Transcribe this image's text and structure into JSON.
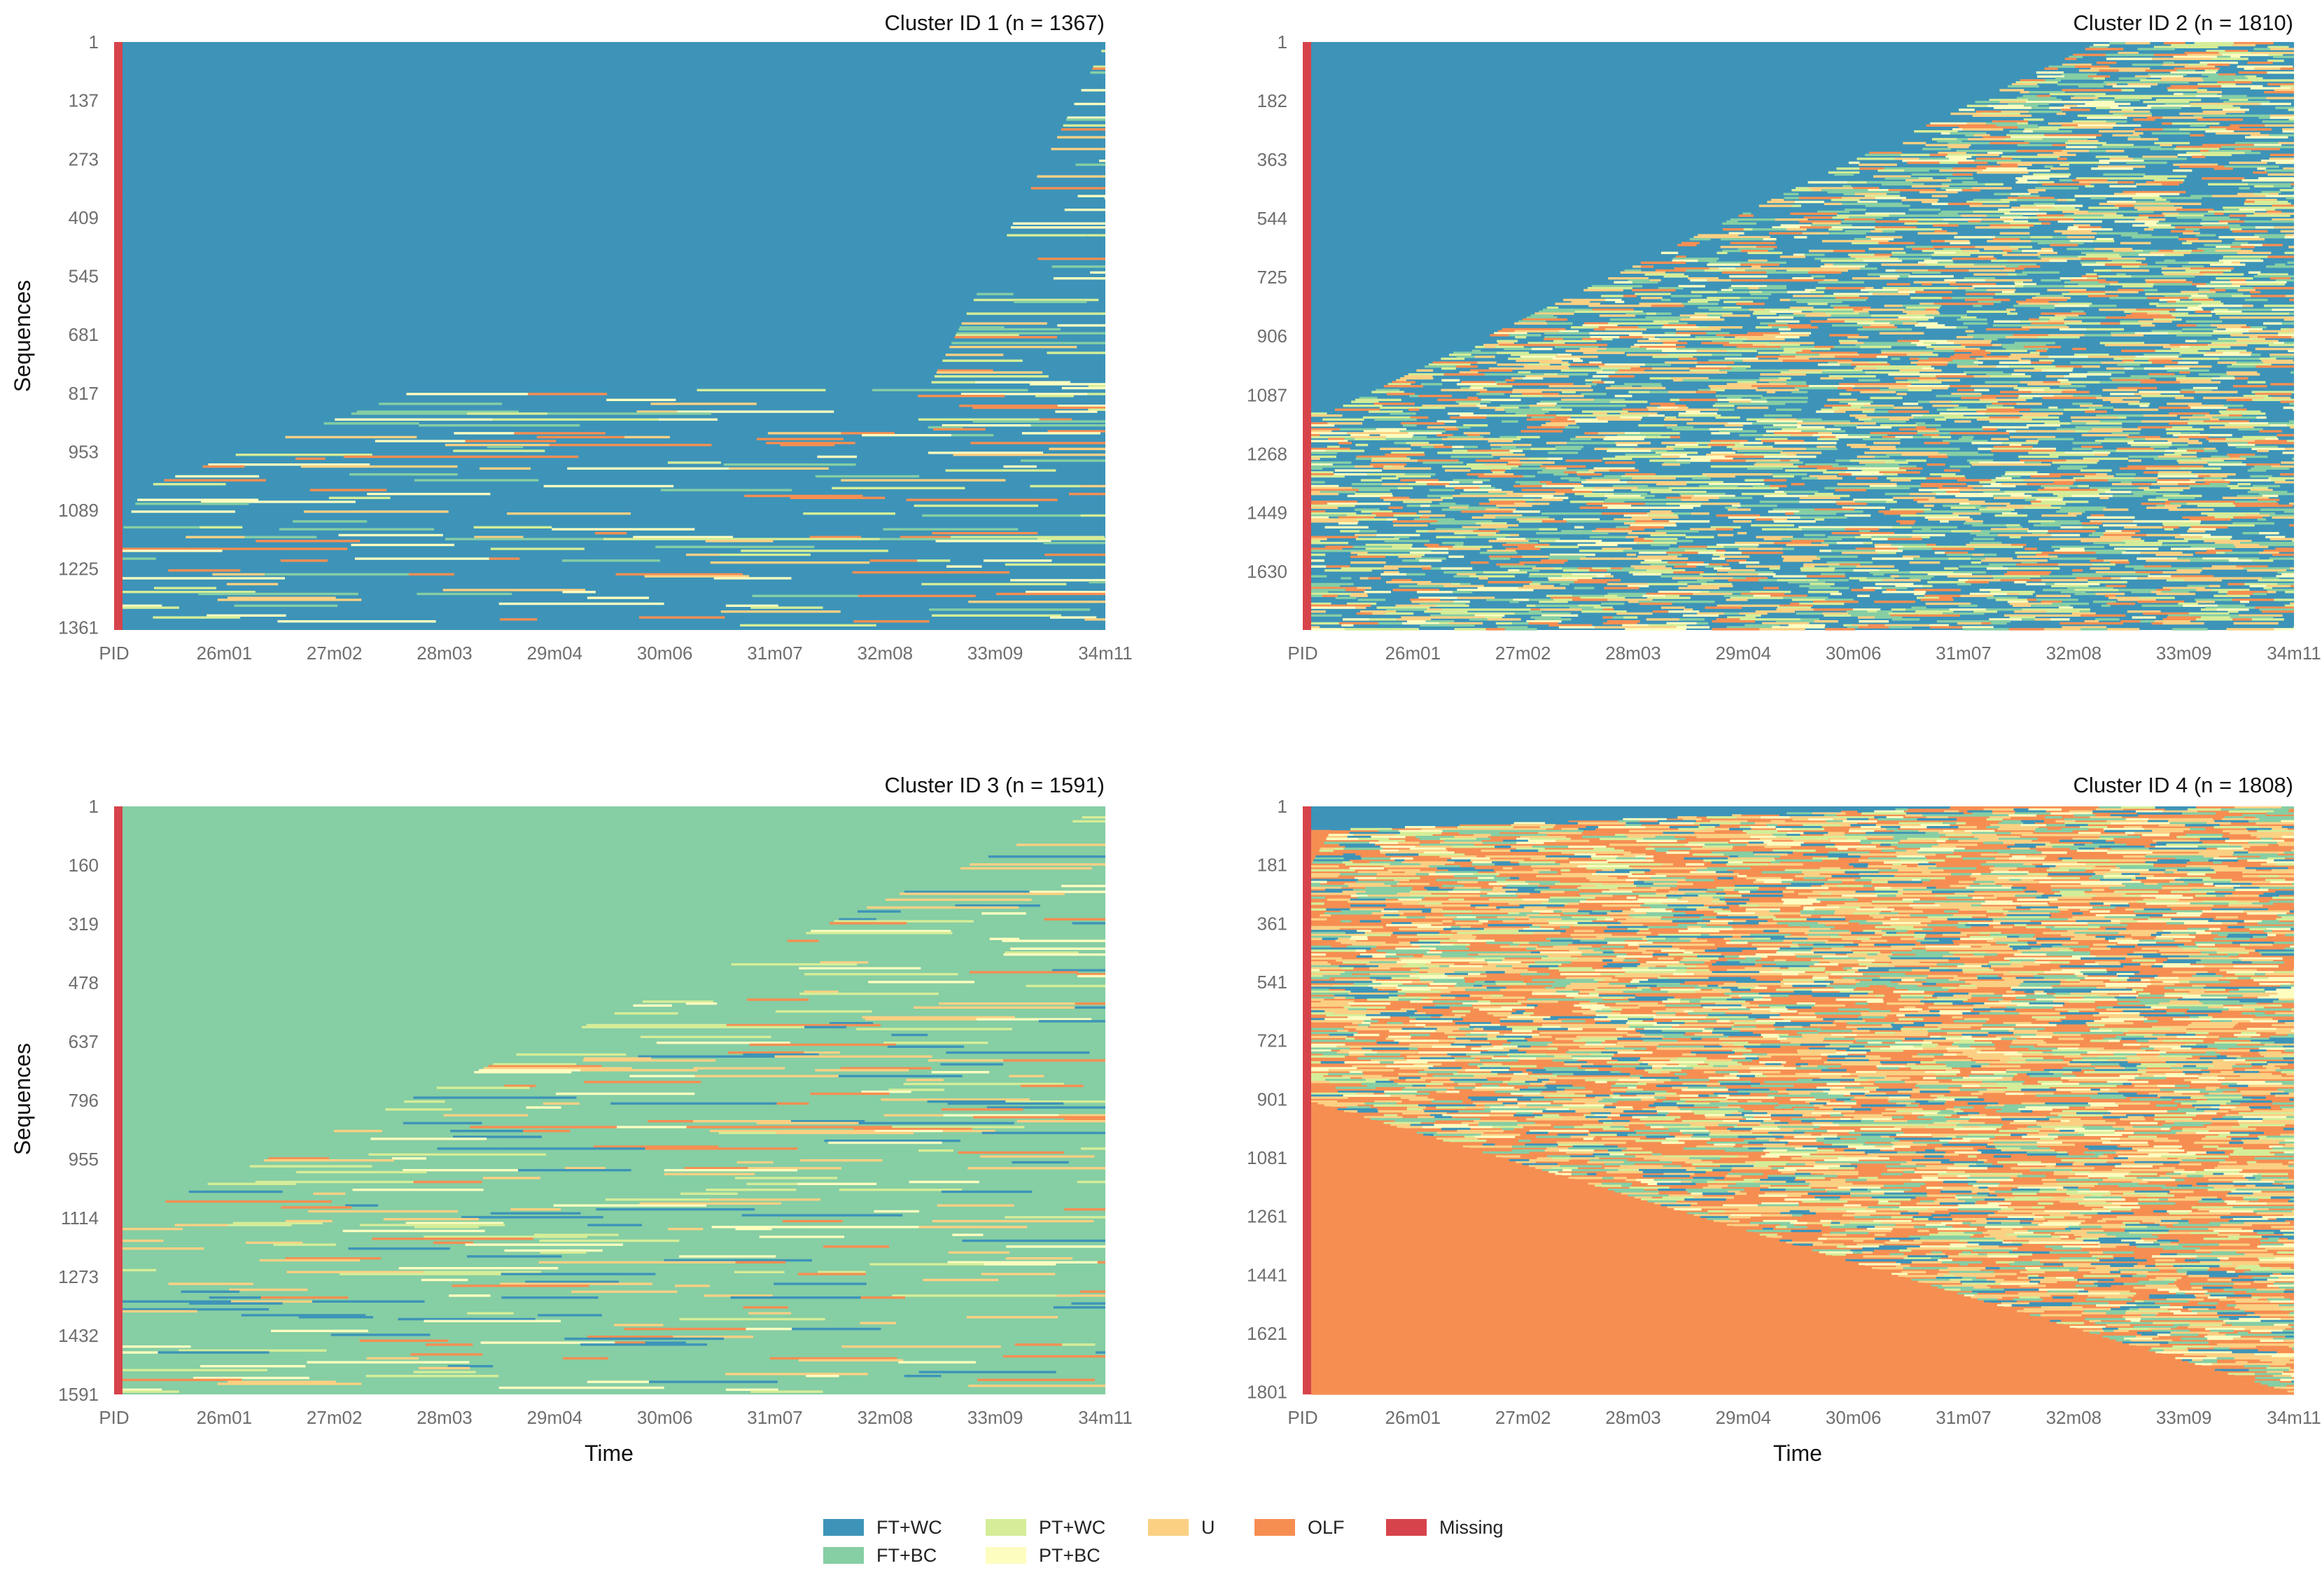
{
  "chart_data": {
    "type": "sequence_index_plot",
    "x_tick_labels": [
      "PID",
      "26m01",
      "27m02",
      "28m03",
      "29m04",
      "30m06",
      "31m07",
      "32m08",
      "33m09",
      "34m11"
    ],
    "xlabel": "Time",
    "ylabel": "Sequences",
    "legend": [
      {
        "label": "FT+WC",
        "color": "#3d94b8"
      },
      {
        "label": "FT+BC",
        "color": "#86ceа4"
      },
      {
        "label": "PT+WC",
        "color": "#d5ed98"
      },
      {
        "label": "PT+BC",
        "color": "#fdfdc0"
      },
      {
        "label": "U",
        "color": "#fbd083"
      },
      {
        "label": "OLF",
        "color": "#f68e52"
      },
      {
        "label": "Missing",
        "color": "#d7434b"
      }
    ],
    "panels": [
      {
        "title": "Cluster ID 1 (n = 1367)",
        "n": 1367,
        "y_tick_labels": [
          "1",
          "137",
          "273",
          "409",
          "545",
          "681",
          "817",
          "953",
          "1089",
          "1225",
          "1361"
        ],
        "dominant_state": "FT+WC",
        "row_groups": [
          {
            "fraction": 0.59,
            "first": "FT+WC",
            "onset_range": [
              1.0,
              0.82
            ],
            "mix": "mostly_dominant"
          },
          {
            "fraction": 0.17,
            "first": "FT+WC",
            "onset_range": [
              0.3,
              0.02
            ],
            "mix": "mostly_dominant"
          },
          {
            "fraction": 0.07,
            "first": "FT+WC",
            "onset_range": [
              0.02,
              0.0
            ],
            "mix": "mostly_dominant"
          },
          {
            "fraction": 0.05,
            "first": "PT+WC",
            "onset_range": [
              0.0,
              0.0
            ],
            "mix": "mostly_dominant"
          },
          {
            "fraction": 0.06,
            "first": "FT+WC",
            "onset_range": [
              0.0,
              0.0
            ],
            "mix": "mostly_dominant"
          },
          {
            "fraction": 0.06,
            "first": "OLF",
            "onset_range": [
              0.0,
              0.0
            ],
            "mix": "mostly_dominant"
          }
        ]
      },
      {
        "title": "Cluster ID 2 (n = 1810)",
        "n": 1810,
        "y_tick_labels": [
          "1",
          "182",
          "363",
          "544",
          "725",
          "906",
          "1087",
          "1268",
          "1449",
          "1630"
        ],
        "dominant_state": "FT+WC",
        "row_groups": [
          {
            "fraction": 0.63,
            "first": "FT+WC",
            "onset_range": [
              0.8,
              0.02
            ],
            "mix": "mixed"
          },
          {
            "fraction": 0.1,
            "first": "PT+WC",
            "onset_range": [
              0.0,
              0.0
            ],
            "mix": "mixed"
          },
          {
            "fraction": 0.07,
            "first": "FT+WC",
            "onset_range": [
              0.0,
              0.0
            ],
            "mix": "mixed"
          },
          {
            "fraction": 0.05,
            "first": "U",
            "onset_range": [
              0.0,
              0.0
            ],
            "mix": "mixed"
          },
          {
            "fraction": 0.15,
            "first": "OLF",
            "onset_range": [
              0.0,
              0.0
            ],
            "mix": "mixed"
          }
        ]
      },
      {
        "title": "Cluster ID 3 (n = 1591)",
        "n": 1591,
        "y_tick_labels": [
          "1",
          "160",
          "319",
          "478",
          "637",
          "796",
          "955",
          "1114",
          "1273",
          "1432",
          "1591"
        ],
        "dominant_state": "FT+BC",
        "row_groups": [
          {
            "fraction": 0.69,
            "first": "FT+BC",
            "onset_range": [
              1.0,
              0.02
            ],
            "mix": "mostly_dominant"
          },
          {
            "fraction": 0.08,
            "first": "PT+BC",
            "onset_range": [
              0.0,
              0.0
            ],
            "mix": "mostly_dominant"
          },
          {
            "fraction": 0.07,
            "first": "U",
            "onset_range": [
              0.0,
              0.0
            ],
            "mix": "mostly_dominant"
          },
          {
            "fraction": 0.07,
            "first": "FT+BC",
            "onset_range": [
              0.0,
              0.0
            ],
            "mix": "mostly_dominant"
          },
          {
            "fraction": 0.09,
            "first": "OLF",
            "onset_range": [
              0.0,
              0.0
            ],
            "mix": "mostly_dominant"
          }
        ]
      },
      {
        "title": "Cluster ID 4 (n = 1808)",
        "n": 1808,
        "y_tick_labels": [
          "1",
          "181",
          "361",
          "541",
          "721",
          "901",
          "1081",
          "1261",
          "1441",
          "1621",
          "1801"
        ],
        "dominant_state": "OLF",
        "row_groups": [
          {
            "fraction": 0.04,
            "first": "FT+WC",
            "onset_range": [
              0.65,
              0.04
            ],
            "mix": "mixed"
          },
          {
            "fraction": 0.06,
            "first": "OLF",
            "onset_range": [
              0.02,
              0.0
            ],
            "mix": "mixed"
          },
          {
            "fraction": 0.22,
            "first": "FT+BC",
            "onset_range": [
              0.0,
              0.0
            ],
            "mix": "mixed"
          },
          {
            "fraction": 0.08,
            "first": "PT+BC",
            "onset_range": [
              0.0,
              0.0
            ],
            "mix": "mixed"
          },
          {
            "fraction": 0.1,
            "first": "U",
            "onset_range": [
              0.0,
              0.0
            ],
            "mix": "mixed"
          },
          {
            "fraction": 0.5,
            "first": "OLF",
            "onset_range": [
              0.0,
              1.0
            ],
            "mix": "mixed"
          }
        ]
      }
    ]
  }
}
